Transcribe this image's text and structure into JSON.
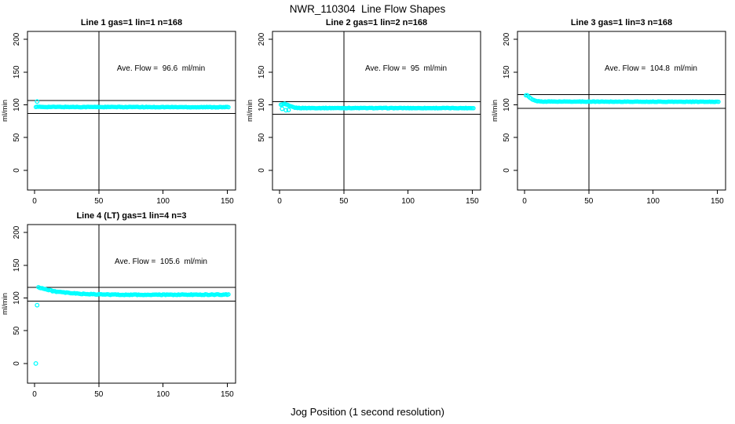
{
  "figure": {
    "main_title": "NWR_110304  Line Flow Shapes",
    "x_axis_label": "Jog Position (1 second resolution)"
  },
  "colors": {
    "points": "#00FFFF",
    "axis": "#000000",
    "background": "#FFFFFF"
  },
  "chart_data": [
    {
      "type": "scatter",
      "panel": "line-1",
      "title": "Line 1 gas=1 lin=1 n=168",
      "annotation": "Ave. Flow =  96.6  ml/min",
      "ave_flow_ml_min": 96.6,
      "n": 168,
      "ylabel": "ml/min",
      "x_ticks": [
        0,
        50,
        100,
        150
      ],
      "y_ticks": [
        0,
        50,
        100,
        150,
        200
      ],
      "xlim": [
        -5.5,
        156.5
      ],
      "ylim": [
        -30,
        212
      ],
      "vline_x": 50,
      "ref_lines_y": [
        106.3,
        86.9
      ],
      "x_range": [
        1,
        151
      ],
      "x_step": 1,
      "noise": 0.9,
      "series_keyframes": [
        [
          1,
          96.8
        ],
        [
          151,
          96.4
        ]
      ],
      "outliers": [
        [
          2,
          105
        ]
      ]
    },
    {
      "type": "scatter",
      "panel": "line-2",
      "title": "Line 2 gas=1 lin=2 n=168",
      "annotation": "Ave. Flow =  95  ml/min",
      "ave_flow_ml_min": 95,
      "n": 168,
      "ylabel": "ml/min",
      "x_ticks": [
        0,
        50,
        100,
        150
      ],
      "y_ticks": [
        0,
        50,
        100,
        150,
        200
      ],
      "xlim": [
        -5.5,
        156.5
      ],
      "ylim": [
        -30,
        212
      ],
      "vline_x": 50,
      "ref_lines_y": [
        104.5,
        85.5
      ],
      "x_range": [
        1,
        151
      ],
      "x_step": 1,
      "noise": 0.8,
      "series_keyframes": [
        [
          2,
          100.5
        ],
        [
          4,
          101.5
        ],
        [
          8,
          98
        ],
        [
          12,
          95.6
        ],
        [
          16,
          95.1
        ],
        [
          151,
          95
        ]
      ],
      "outliers": [
        [
          2,
          94
        ],
        [
          5,
          91.8
        ],
        [
          7,
          92.2
        ]
      ]
    },
    {
      "type": "scatter",
      "panel": "line-3",
      "title": "Line 3 gas=1 lin=3 n=168",
      "annotation": "Ave. Flow =  104.8  ml/min",
      "ave_flow_ml_min": 104.8,
      "n": 168,
      "ylabel": "ml/min",
      "x_ticks": [
        0,
        50,
        100,
        150
      ],
      "y_ticks": [
        0,
        50,
        100,
        150,
        200
      ],
      "xlim": [
        -5.5,
        156.5
      ],
      "ylim": [
        -30,
        212
      ],
      "vline_x": 50,
      "ref_lines_y": [
        115.3,
        94.3
      ],
      "x_range": [
        1,
        151
      ],
      "x_step": 1,
      "noise": 0.7,
      "series_keyframes": [
        [
          2,
          114.5
        ],
        [
          4,
          111
        ],
        [
          6,
          108
        ],
        [
          9,
          105.8
        ],
        [
          13,
          105
        ],
        [
          151,
          104.6
        ]
      ],
      "outliers": []
    },
    {
      "type": "scatter",
      "panel": "line-4-lt",
      "title": "Line 4 (LT) gas=1 lin=4 n=3",
      "annotation": "Ave. Flow =  105.6  ml/min",
      "ave_flow_ml_min": 105.6,
      "n": 3,
      "ylabel": "ml/min",
      "x_ticks": [
        0,
        50,
        100,
        150
      ],
      "y_ticks": [
        0,
        50,
        100,
        150,
        200
      ],
      "xlim": [
        -5.5,
        156.5
      ],
      "ylim": [
        -30,
        212
      ],
      "vline_x": 50,
      "ref_lines_y": [
        116.2,
        95.0
      ],
      "x_range": [
        3,
        151
      ],
      "x_step": 1,
      "noise": 1.2,
      "series_keyframes": [
        [
          3,
          116.5
        ],
        [
          6,
          114.8
        ],
        [
          10,
          112.5
        ],
        [
          15,
          110.3
        ],
        [
          22,
          108.4
        ],
        [
          32,
          106.8
        ],
        [
          45,
          105.6
        ],
        [
          60,
          105.1
        ],
        [
          90,
          104.8
        ],
        [
          120,
          105.0
        ],
        [
          151,
          105.2
        ]
      ],
      "outliers": [
        [
          1,
          0
        ],
        [
          2,
          89
        ]
      ]
    }
  ]
}
